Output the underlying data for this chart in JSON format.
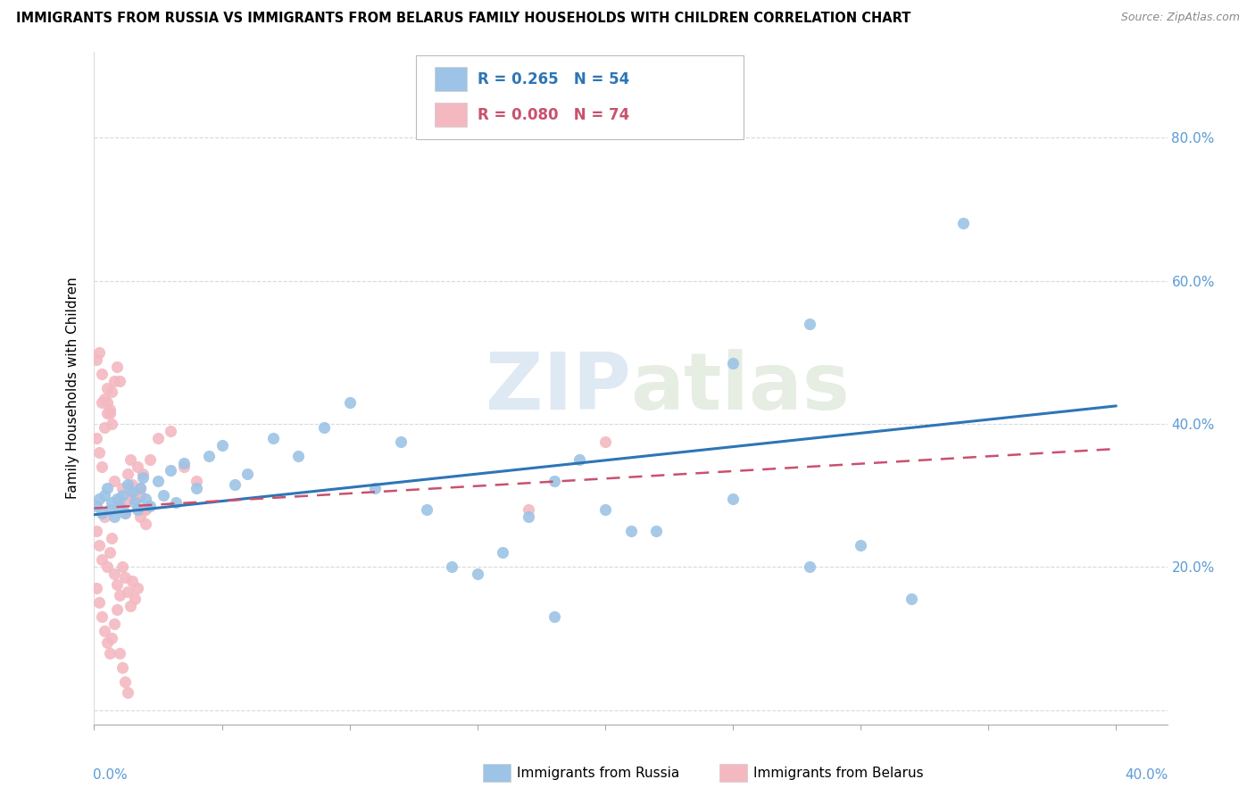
{
  "title": "IMMIGRANTS FROM RUSSIA VS IMMIGRANTS FROM BELARUS FAMILY HOUSEHOLDS WITH CHILDREN CORRELATION CHART",
  "source": "Source: ZipAtlas.com",
  "ylabel": "Family Households with Children",
  "xlim": [
    0.0,
    0.42
  ],
  "ylim": [
    -0.02,
    0.92
  ],
  "axis_color": "#5b9bd5",
  "grid_color": "#d9d9d9",
  "watermark_zip": "ZIP",
  "watermark_atlas": "atlas",
  "russia_color": "#9dc3e6",
  "belarus_color": "#f4b8c1",
  "russia_line_color": "#2e75b6",
  "belarus_line_color": "#c9516e",
  "legend_R_russia": "R = 0.265",
  "legend_N_russia": "N = 54",
  "legend_R_belarus": "R = 0.080",
  "legend_N_belarus": "N = 74",
  "russia_scatter_x": [
    0.001,
    0.002,
    0.003,
    0.004,
    0.005,
    0.006,
    0.007,
    0.008,
    0.009,
    0.01,
    0.011,
    0.012,
    0.013,
    0.015,
    0.016,
    0.017,
    0.018,
    0.019,
    0.02,
    0.022,
    0.025,
    0.027,
    0.03,
    0.032,
    0.035,
    0.04,
    0.045,
    0.05,
    0.055,
    0.06,
    0.07,
    0.08,
    0.09,
    0.1,
    0.11,
    0.12,
    0.13,
    0.14,
    0.15,
    0.16,
    0.17,
    0.18,
    0.19,
    0.2,
    0.21,
    0.22,
    0.25,
    0.28,
    0.3,
    0.32,
    0.25,
    0.28,
    0.34,
    0.18
  ],
  "russia_scatter_y": [
    0.285,
    0.295,
    0.275,
    0.3,
    0.31,
    0.28,
    0.29,
    0.27,
    0.295,
    0.285,
    0.3,
    0.275,
    0.315,
    0.305,
    0.29,
    0.28,
    0.31,
    0.325,
    0.295,
    0.285,
    0.32,
    0.3,
    0.335,
    0.29,
    0.345,
    0.31,
    0.355,
    0.37,
    0.315,
    0.33,
    0.38,
    0.355,
    0.395,
    0.43,
    0.31,
    0.375,
    0.28,
    0.2,
    0.19,
    0.22,
    0.27,
    0.32,
    0.35,
    0.28,
    0.25,
    0.25,
    0.295,
    0.2,
    0.23,
    0.155,
    0.485,
    0.54,
    0.68,
    0.13
  ],
  "belarus_scatter_x": [
    0.001,
    0.002,
    0.003,
    0.004,
    0.005,
    0.006,
    0.007,
    0.008,
    0.009,
    0.01,
    0.011,
    0.012,
    0.013,
    0.014,
    0.015,
    0.016,
    0.017,
    0.018,
    0.019,
    0.02,
    0.001,
    0.002,
    0.003,
    0.004,
    0.005,
    0.006,
    0.007,
    0.008,
    0.009,
    0.01,
    0.011,
    0.012,
    0.013,
    0.014,
    0.015,
    0.016,
    0.017,
    0.018,
    0.019,
    0.02,
    0.001,
    0.002,
    0.003,
    0.004,
    0.005,
    0.006,
    0.007,
    0.008,
    0.009,
    0.01,
    0.011,
    0.012,
    0.013,
    0.022,
    0.025,
    0.03,
    0.035,
    0.04,
    0.17,
    0.2,
    0.001,
    0.002,
    0.003,
    0.005,
    0.004,
    0.006,
    0.007,
    0.003,
    0.005,
    0.008,
    0.01,
    0.012,
    0.015,
    0.018
  ],
  "belarus_scatter_y": [
    0.38,
    0.36,
    0.34,
    0.395,
    0.43,
    0.415,
    0.445,
    0.46,
    0.48,
    0.46,
    0.31,
    0.29,
    0.33,
    0.35,
    0.315,
    0.295,
    0.34,
    0.27,
    0.33,
    0.28,
    0.25,
    0.23,
    0.21,
    0.27,
    0.2,
    0.22,
    0.24,
    0.19,
    0.175,
    0.16,
    0.2,
    0.185,
    0.165,
    0.145,
    0.18,
    0.155,
    0.17,
    0.3,
    0.28,
    0.26,
    0.17,
    0.15,
    0.13,
    0.11,
    0.095,
    0.08,
    0.1,
    0.12,
    0.14,
    0.08,
    0.06,
    0.04,
    0.025,
    0.35,
    0.38,
    0.39,
    0.34,
    0.32,
    0.28,
    0.375,
    0.49,
    0.5,
    0.47,
    0.45,
    0.435,
    0.42,
    0.4,
    0.43,
    0.415,
    0.32,
    0.295,
    0.275,
    0.3,
    0.31
  ],
  "russia_trend_x": [
    0.0,
    0.4
  ],
  "russia_trend_y": [
    0.273,
    0.425
  ],
  "belarus_trend_x": [
    0.0,
    0.4
  ],
  "belarus_trend_y": [
    0.282,
    0.365
  ]
}
